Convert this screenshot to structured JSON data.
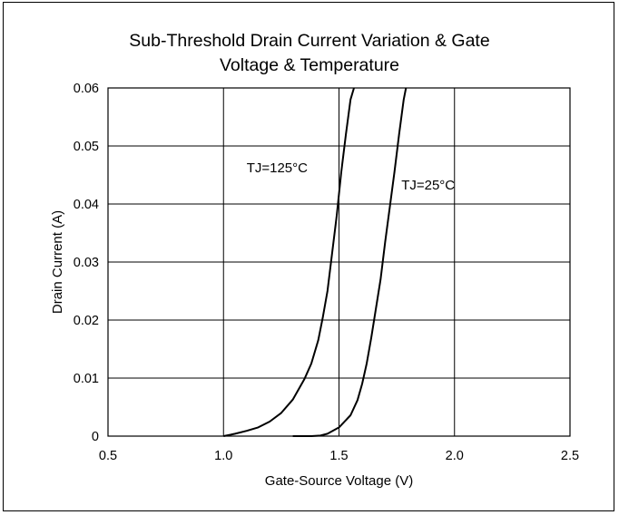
{
  "chart_data": {
    "type": "line",
    "title_lines": [
      "Sub-Threshold Drain Current Variation & Gate",
      "Voltage & Temperature"
    ],
    "xlabel": "Gate-Source Voltage (V)",
    "ylabel": "Drain Current (A)",
    "xlim": [
      0.5,
      2.5
    ],
    "ylim": [
      0,
      0.06
    ],
    "x_ticks": [
      0.5,
      1.0,
      1.5,
      2.0,
      2.5
    ],
    "x_tick_labels": [
      "0.5",
      "1.0",
      "1.5",
      "2.0",
      "2.5"
    ],
    "y_ticks": [
      0,
      0.01,
      0.02,
      0.03,
      0.04,
      0.05,
      0.06
    ],
    "y_tick_labels": [
      "0",
      "0.01",
      "0.02",
      "0.03",
      "0.04",
      "0.05",
      "0.06"
    ],
    "grid": true,
    "series": [
      {
        "name": "TJ=125°C",
        "x": [
          1.0,
          1.05,
          1.1,
          1.15,
          1.2,
          1.25,
          1.3,
          1.35,
          1.38,
          1.41,
          1.43,
          1.45,
          1.47,
          1.49,
          1.51,
          1.53,
          1.55,
          1.565
        ],
        "y": [
          0.0,
          0.0004,
          0.0009,
          0.0015,
          0.0025,
          0.004,
          0.0063,
          0.0098,
          0.0125,
          0.0165,
          0.0205,
          0.025,
          0.0315,
          0.038,
          0.0455,
          0.052,
          0.058,
          0.06
        ]
      },
      {
        "name": "TJ=25°C",
        "x": [
          1.3,
          1.38,
          1.42,
          1.45,
          1.5,
          1.55,
          1.58,
          1.6,
          1.62,
          1.64,
          1.66,
          1.68,
          1.7,
          1.72,
          1.74,
          1.76,
          1.78,
          1.79
        ],
        "y": [
          0.0,
          0.0,
          0.0001,
          0.0004,
          0.0015,
          0.0036,
          0.0062,
          0.009,
          0.0125,
          0.017,
          0.022,
          0.027,
          0.0335,
          0.0395,
          0.0455,
          0.052,
          0.058,
          0.06
        ]
      }
    ],
    "annotations": [
      {
        "text": "TJ=125°C",
        "x": 1.1,
        "y": 0.0455
      },
      {
        "text": "TJ=25°C",
        "x": 1.77,
        "y": 0.0425
      }
    ]
  }
}
